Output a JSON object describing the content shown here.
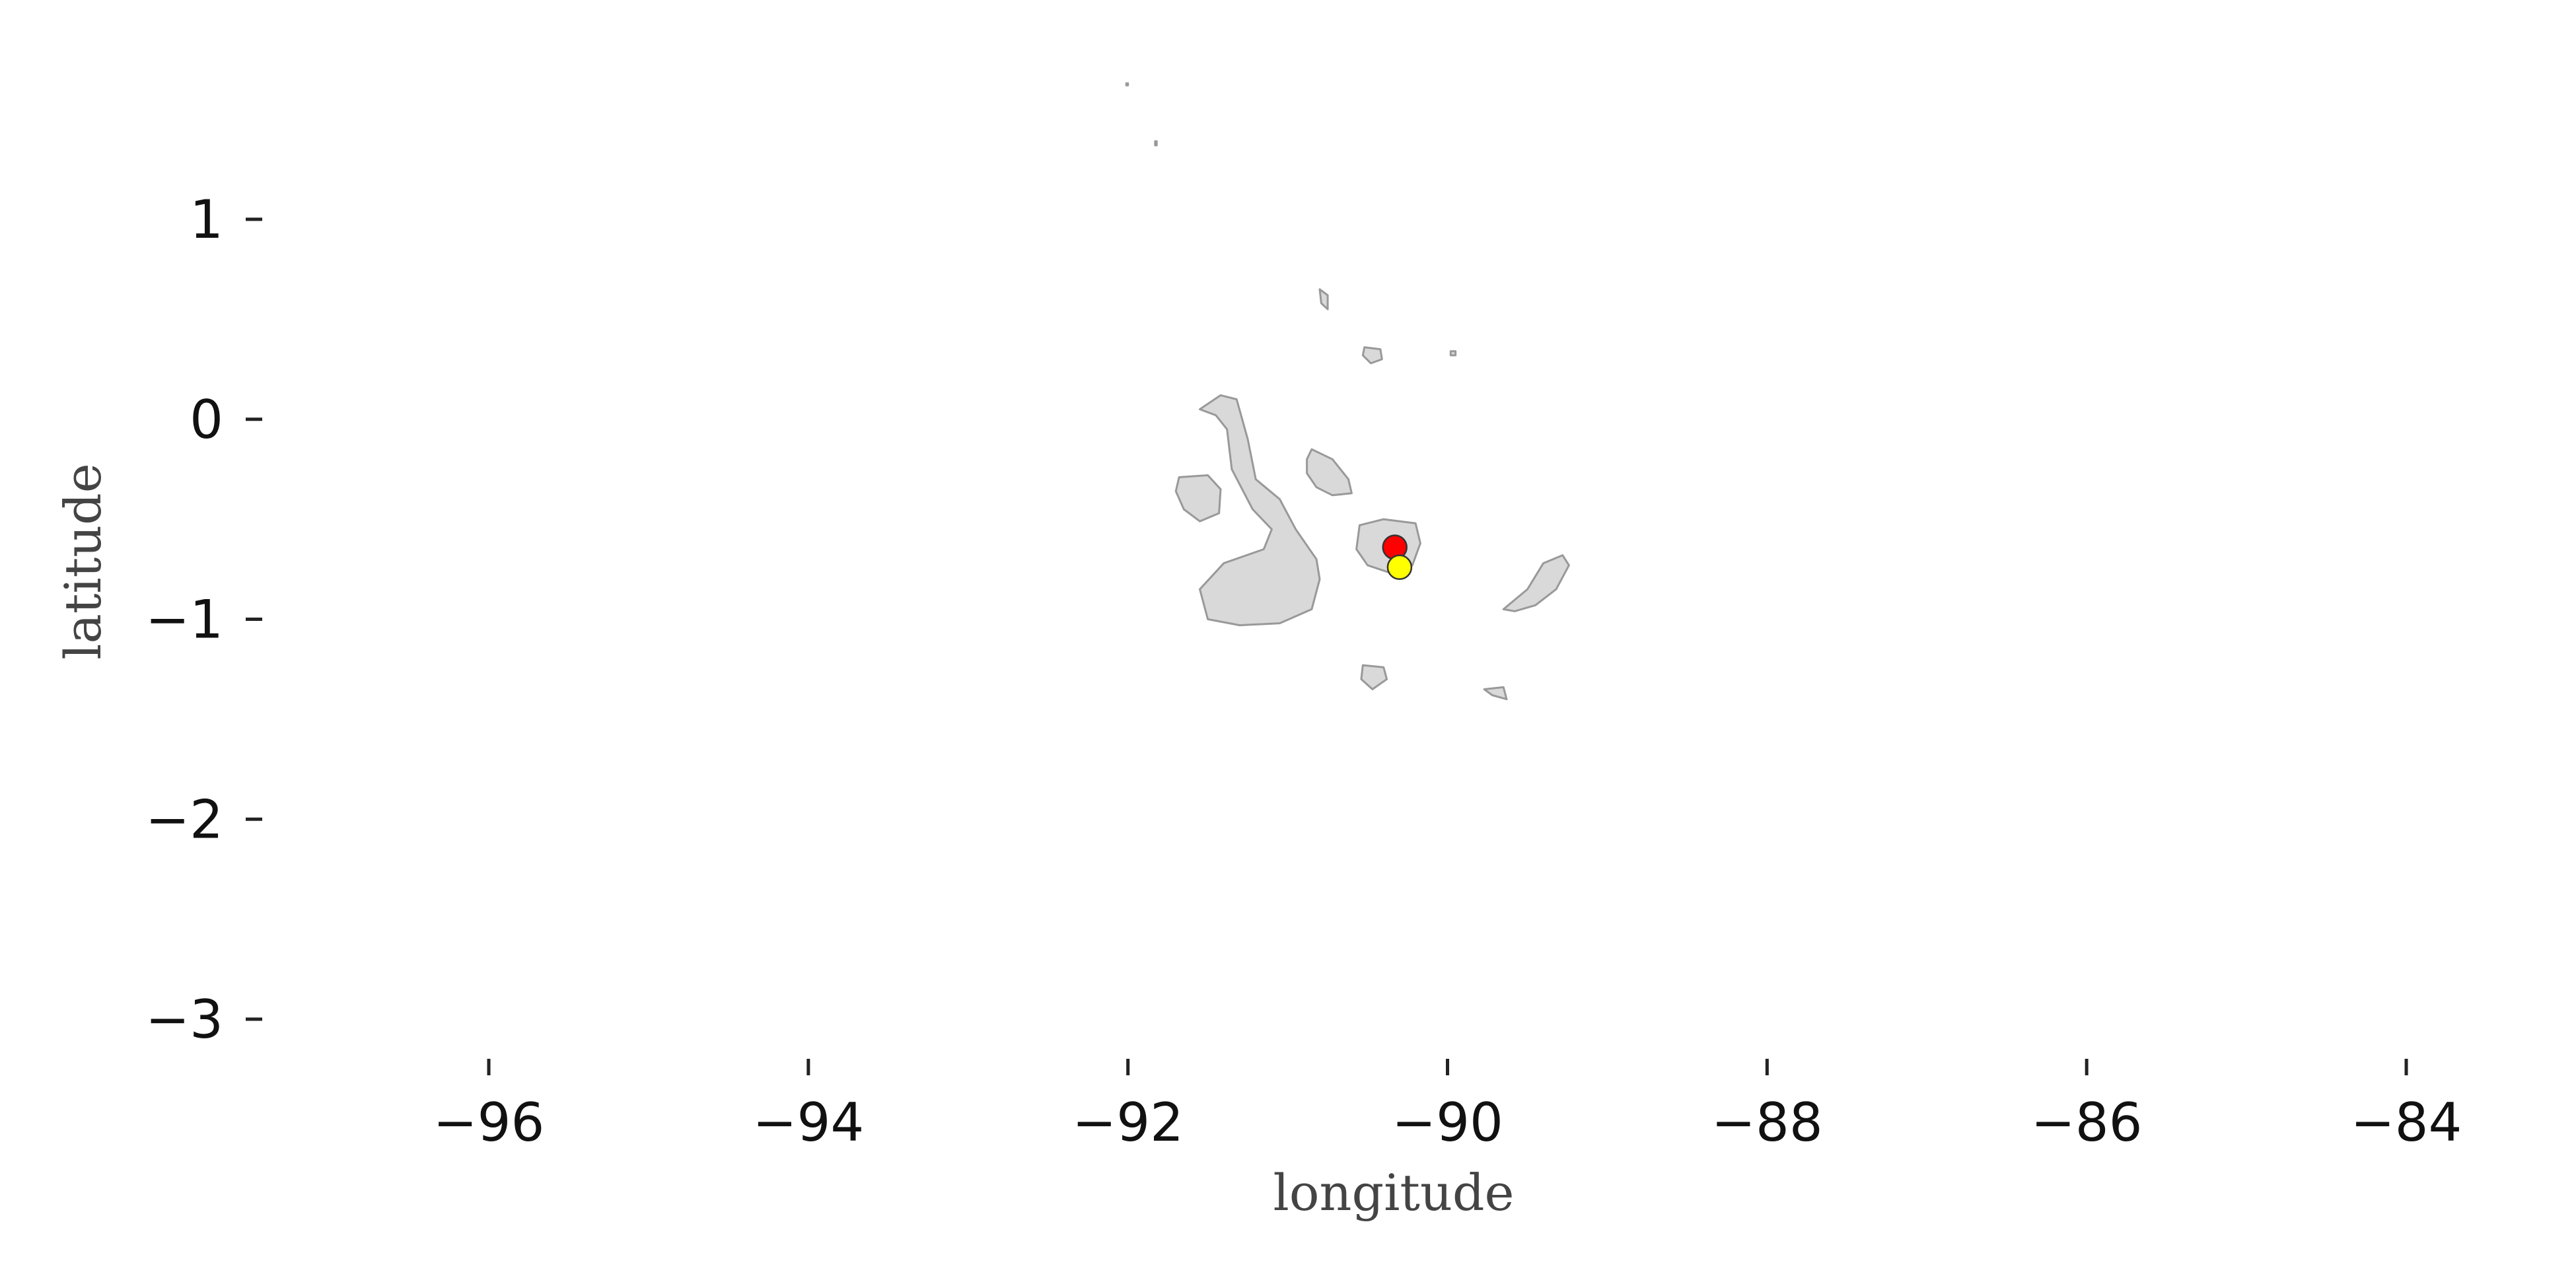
{
  "chart_data": {
    "type": "scatter",
    "map": "Galapagos Islands basemap",
    "xlabel": "longitude",
    "ylabel": "latitude",
    "xlim": [
      -97.3,
      -83.6
    ],
    "ylim": [
      -3.2,
      1.8
    ],
    "xticks": [
      -96,
      -94,
      -92,
      -90,
      -88,
      -86,
      -84
    ],
    "xtick_labels": [
      "−96",
      "−94",
      "−92",
      "−90",
      "−88",
      "−86",
      "−84"
    ],
    "yticks": [
      1,
      0,
      -1,
      -2,
      -3
    ],
    "ytick_labels": [
      "1",
      "0",
      "−1",
      "−2",
      "−3"
    ],
    "grid": false,
    "land_color": "#d9d9d9",
    "land_edge_color": "#999999",
    "points": [
      {
        "color": "#ff0000",
        "lon": -90.33,
        "lat": -0.64
      },
      {
        "color": "#ffff00",
        "lon": -90.3,
        "lat": -0.74
      }
    ],
    "islands": [
      {
        "id": "isabela",
        "coords": [
          [
            -91.55,
            0.05
          ],
          [
            -91.42,
            0.12
          ],
          [
            -91.32,
            0.1
          ],
          [
            -91.25,
            -0.1
          ],
          [
            -91.2,
            -0.3
          ],
          [
            -91.05,
            -0.4
          ],
          [
            -90.95,
            -0.55
          ],
          [
            -90.82,
            -0.7
          ],
          [
            -90.8,
            -0.8
          ],
          [
            -90.85,
            -0.95
          ],
          [
            -91.05,
            -1.02
          ],
          [
            -91.3,
            -1.03
          ],
          [
            -91.5,
            -1.0
          ],
          [
            -91.55,
            -0.85
          ],
          [
            -91.4,
            -0.72
          ],
          [
            -91.15,
            -0.65
          ],
          [
            -91.1,
            -0.55
          ],
          [
            -91.22,
            -0.45
          ],
          [
            -91.35,
            -0.25
          ],
          [
            -91.38,
            -0.05
          ],
          [
            -91.45,
            0.02
          ]
        ]
      },
      {
        "id": "fernandina",
        "coords": [
          [
            -91.68,
            -0.29
          ],
          [
            -91.5,
            -0.28
          ],
          [
            -91.42,
            -0.35
          ],
          [
            -91.43,
            -0.47
          ],
          [
            -91.55,
            -0.51
          ],
          [
            -91.65,
            -0.45
          ],
          [
            -91.7,
            -0.36
          ]
        ]
      },
      {
        "id": "santiago",
        "coords": [
          [
            -90.85,
            -0.15
          ],
          [
            -90.72,
            -0.2
          ],
          [
            -90.62,
            -0.3
          ],
          [
            -90.6,
            -0.37
          ],
          [
            -90.72,
            -0.38
          ],
          [
            -90.82,
            -0.34
          ],
          [
            -90.88,
            -0.27
          ],
          [
            -90.88,
            -0.2
          ]
        ]
      },
      {
        "id": "santa-cruz",
        "coords": [
          [
            -90.55,
            -0.53
          ],
          [
            -90.4,
            -0.5
          ],
          [
            -90.2,
            -0.52
          ],
          [
            -90.17,
            -0.62
          ],
          [
            -90.22,
            -0.73
          ],
          [
            -90.35,
            -0.77
          ],
          [
            -90.5,
            -0.73
          ],
          [
            -90.57,
            -0.65
          ]
        ]
      },
      {
        "id": "san-cristobal",
        "coords": [
          [
            -89.65,
            -0.95
          ],
          [
            -89.5,
            -0.85
          ],
          [
            -89.4,
            -0.72
          ],
          [
            -89.28,
            -0.68
          ],
          [
            -89.24,
            -0.73
          ],
          [
            -89.32,
            -0.85
          ],
          [
            -89.45,
            -0.93
          ],
          [
            -89.58,
            -0.96
          ]
        ]
      },
      {
        "id": "floreana",
        "coords": [
          [
            -90.53,
            -1.23
          ],
          [
            -90.4,
            -1.24
          ],
          [
            -90.38,
            -1.3
          ],
          [
            -90.47,
            -1.35
          ],
          [
            -90.54,
            -1.3
          ]
        ]
      },
      {
        "id": "espanola",
        "coords": [
          [
            -89.77,
            -1.35
          ],
          [
            -89.65,
            -1.34
          ],
          [
            -89.63,
            -1.4
          ],
          [
            -89.72,
            -1.38
          ]
        ]
      },
      {
        "id": "pinta",
        "coords": [
          [
            -90.8,
            0.65
          ],
          [
            -90.75,
            0.62
          ],
          [
            -90.75,
            0.55
          ],
          [
            -90.79,
            0.58
          ]
        ]
      },
      {
        "id": "marchena",
        "coords": [
          [
            -90.52,
            0.36
          ],
          [
            -90.42,
            0.35
          ],
          [
            -90.41,
            0.3
          ],
          [
            -90.48,
            0.28
          ],
          [
            -90.53,
            0.32
          ]
        ]
      },
      {
        "id": "genovesa",
        "coords": [
          [
            -89.98,
            0.34
          ],
          [
            -89.95,
            0.34
          ],
          [
            -89.95,
            0.32
          ],
          [
            -89.98,
            0.32
          ]
        ]
      },
      {
        "id": "wolf",
        "coords": [
          [
            -91.83,
            1.39
          ],
          [
            -91.82,
            1.39
          ],
          [
            -91.82,
            1.37
          ],
          [
            -91.83,
            1.37
          ]
        ]
      },
      {
        "id": "darwin",
        "coords": [
          [
            -92.01,
            1.68
          ],
          [
            -92.0,
            1.68
          ],
          [
            -92.0,
            1.67
          ],
          [
            -92.01,
            1.67
          ]
        ]
      }
    ]
  }
}
